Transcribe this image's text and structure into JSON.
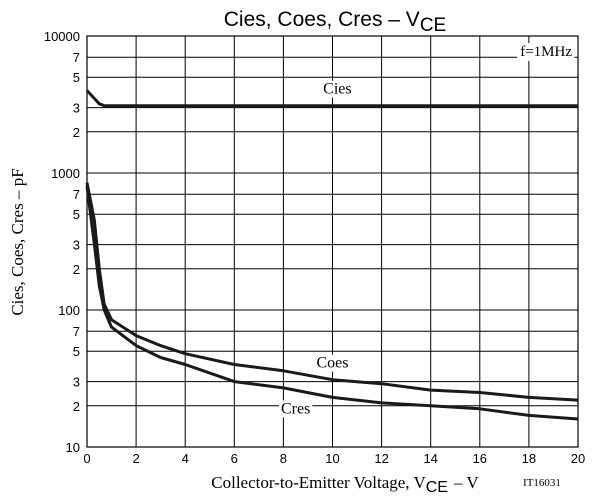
{
  "chart_data": {
    "type": "line",
    "title": "Cies, Coes, Cres – V",
    "title_subscript": "CE",
    "xlabel": "Collector-to-Emitter Voltage, V",
    "xlabel_subscript": "CE",
    "xlabel_unit": "– V",
    "ylabel": "Cies, Coes, Cres – pF",
    "annotation": "f=1MHz",
    "figure_id": "IT16031",
    "x": [
      0,
      0.3,
      0.5,
      0.7,
      1,
      2,
      3,
      4,
      6,
      8,
      10,
      12,
      14,
      16,
      18,
      20
    ],
    "series": [
      {
        "name": "Cies",
        "color": "#1a1a1a",
        "values": [
          4000,
          3500,
          3200,
          3100,
          3100,
          3100,
          3100,
          3100,
          3100,
          3100,
          3100,
          3100,
          3100,
          3100,
          3100,
          3100
        ]
      },
      {
        "name": "Coes",
        "color": "#1a1a1a",
        "values": [
          850,
          450,
          200,
          110,
          85,
          65,
          55,
          48,
          40,
          36,
          31,
          29,
          26,
          25,
          23,
          22
        ]
      },
      {
        "name": "Cres",
        "color": "#1a1a1a",
        "values": [
          800,
          300,
          150,
          100,
          75,
          55,
          45,
          40,
          30,
          27,
          23,
          21,
          20,
          19,
          17,
          16
        ]
      }
    ],
    "xlim": [
      0,
      20
    ],
    "xticks": [
      0,
      2,
      4,
      6,
      8,
      10,
      12,
      14,
      16,
      18,
      20
    ],
    "ylim": [
      10,
      10000
    ],
    "log_y": true,
    "yticks": [
      10000,
      {
        "value": 7000,
        "label": "7"
      },
      {
        "value": 5000,
        "label": "5"
      },
      {
        "value": 3000,
        "label": "3"
      },
      {
        "value": 2000,
        "label": "2"
      },
      1000,
      {
        "value": 700,
        "label": "7"
      },
      {
        "value": 500,
        "label": "5"
      },
      {
        "value": 300,
        "label": "3"
      },
      {
        "value": 200,
        "label": "2"
      },
      100,
      {
        "value": 70,
        "label": "7"
      },
      {
        "value": 50,
        "label": "5"
      },
      {
        "value": 30,
        "label": "3"
      },
      {
        "value": 20,
        "label": "2"
      },
      10
    ],
    "grid": true
  }
}
